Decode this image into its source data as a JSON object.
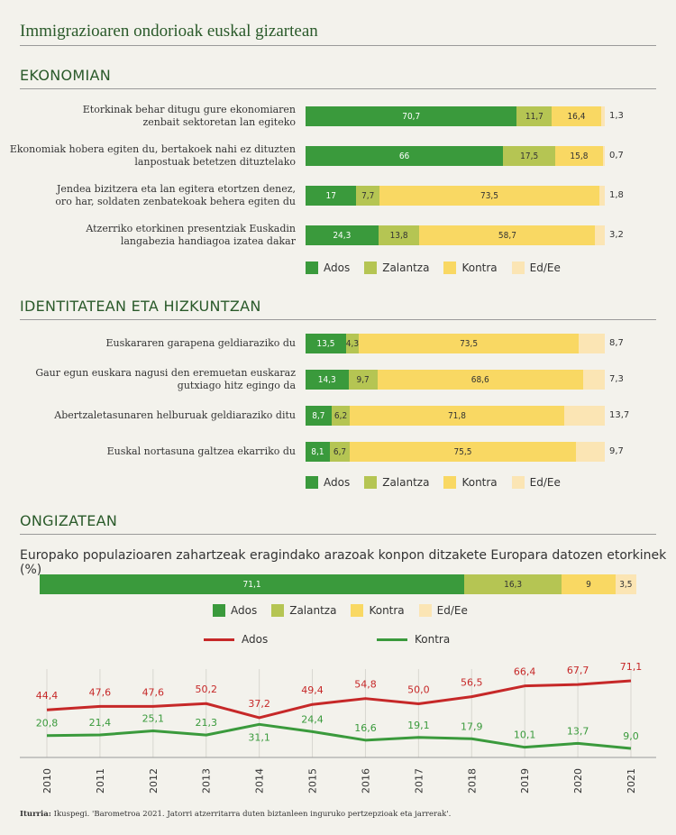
{
  "title": "Immigrazioaren ondorioak euskal gizartean",
  "colors": {
    "ados": "#3a9a3c",
    "zalantza": "#b5c553",
    "kontra": "#f9d863",
    "ed": "#fbe5b4",
    "line_ados": "#c62828",
    "line_kontra": "#3a9a3c"
  },
  "legend": {
    "ados": "Ados",
    "zalantza": "Zalantza",
    "kontra": "Kontra",
    "ed": "Ed/Ee"
  },
  "sections": {
    "ekonomian": "EKONOMIAN",
    "identitatean": "IDENTITATEAN ETA HIZKUNTZAN",
    "ongizatean": "ONGIZATEAN"
  },
  "ongizatean_subtitle": "Europako populazioaren zahartzeak eragindako arazoak konpon ditzakete Europara datozen etorkinek (%)",
  "line_legend": {
    "ados": "Ados",
    "kontra": "Kontra"
  },
  "source": {
    "label": "Iturria:",
    "text": " Ikuspegi. 'Barometroa 2021. Jatorri atzerritarra duten biztanleen inguruko pertzepzioak eta jarrerak'."
  },
  "chart_data": [
    {
      "type": "bar",
      "stacked": true,
      "orientation": "horizontal",
      "section": "EKONOMIAN",
      "series_names": [
        "Ados",
        "Zalantza",
        "Kontra",
        "Ed/Ee"
      ],
      "rows": [
        {
          "label": [
            "Etorkinak behar ditugu gure ekonomiaren",
            "zenbait sektoretan lan egiteko"
          ],
          "values": [
            70.7,
            11.7,
            16.4,
            1.3
          ],
          "labels": [
            "70,7",
            "11,7",
            "16,4",
            "1,3"
          ]
        },
        {
          "label": [
            "Ekonomiak hobera egiten du, bertakoek nahi ez dituzten",
            "lanpostuak betetzen dituztelako"
          ],
          "values": [
            66,
            17.5,
            15.8,
            0.7
          ],
          "labels": [
            "66",
            "17,5",
            "15,8",
            "0,7"
          ]
        },
        {
          "label": [
            "Jendea bizitzera eta lan egitera etortzen denez,",
            "oro har, soldaten zenbatekoak behera egiten du"
          ],
          "values": [
            17,
            7.7,
            73.5,
            1.8
          ],
          "labels": [
            "17",
            "7,7",
            "73,5",
            "1,8"
          ]
        },
        {
          "label": [
            "Atzerriko etorkinen presentziak Euskadin",
            "langabezia handiagoa izatea dakar"
          ],
          "values": [
            24.3,
            13.8,
            58.7,
            3.2
          ],
          "labels": [
            "24,3",
            "13,8",
            "58,7",
            "3,2"
          ]
        }
      ]
    },
    {
      "type": "bar",
      "stacked": true,
      "orientation": "horizontal",
      "section": "IDENTITATEAN ETA HIZKUNTZAN",
      "series_names": [
        "Ados",
        "Zalantza",
        "Kontra",
        "Ed/Ee"
      ],
      "rows": [
        {
          "label": [
            "Euskararen garapena geldiaraziko du"
          ],
          "values": [
            13.5,
            4.3,
            73.5,
            8.7
          ],
          "labels": [
            "13,5",
            "4,3",
            "73,5",
            "8,7"
          ]
        },
        {
          "label": [
            "Gaur egun euskara nagusi den eremuetan euskaraz",
            "gutxiago hitz egingo da"
          ],
          "values": [
            14.3,
            9.7,
            68.6,
            7.3
          ],
          "labels": [
            "14,3",
            "9,7",
            "68,6",
            "7,3"
          ]
        },
        {
          "label": [
            "Abertzaletasunaren helburuak geldiaraziko ditu"
          ],
          "values": [
            8.7,
            6.2,
            71.8,
            13.7
          ],
          "labels": [
            "8,7",
            "6,2",
            "71,8",
            "13,7"
          ]
        },
        {
          "label": [
            "Euskal nortasuna galtzea ekarriko du"
          ],
          "values": [
            8.1,
            6.7,
            75.5,
            9.7
          ],
          "labels": [
            "8,1",
            "6,7",
            "75,5",
            "9,7"
          ]
        }
      ]
    },
    {
      "type": "bar",
      "stacked": true,
      "orientation": "horizontal",
      "section": "ONGIZATEAN",
      "series_names": [
        "Ados",
        "Zalantza",
        "Kontra",
        "Ed/Ee"
      ],
      "values": [
        71.1,
        16.3,
        9,
        3.5
      ],
      "labels": [
        "71,1",
        "16,3",
        "9",
        "3,5"
      ]
    },
    {
      "type": "line",
      "x": [
        "2010",
        "2011",
        "2012",
        "2013",
        "2014",
        "2015",
        "2016",
        "2017",
        "2018",
        "2019",
        "2020",
        "2021"
      ],
      "series": [
        {
          "name": "Ados",
          "values": [
            44.4,
            47.6,
            47.6,
            50.2,
            37.2,
            49.4,
            54.8,
            50.0,
            56.5,
            66.4,
            67.7,
            71.1
          ],
          "labels": [
            "44,4",
            "47,6",
            "47,6",
            "50,2",
            "37,2",
            "49,4",
            "54,8",
            "50,0",
            "56,5",
            "66,4",
            "67,7",
            "71,1"
          ]
        },
        {
          "name": "Kontra",
          "values": [
            20.8,
            21.4,
            25.1,
            21.3,
            31.1,
            24.4,
            16.6,
            19.1,
            17.9,
            10.1,
            13.7,
            9.0
          ],
          "labels": [
            "20,8",
            "21,4",
            "25,1",
            "21,3",
            "31,1",
            "24,4",
            "16,6",
            "19,1",
            "17,9",
            "10,1",
            "13,7",
            "9,0"
          ]
        }
      ],
      "grid": true
    }
  ]
}
